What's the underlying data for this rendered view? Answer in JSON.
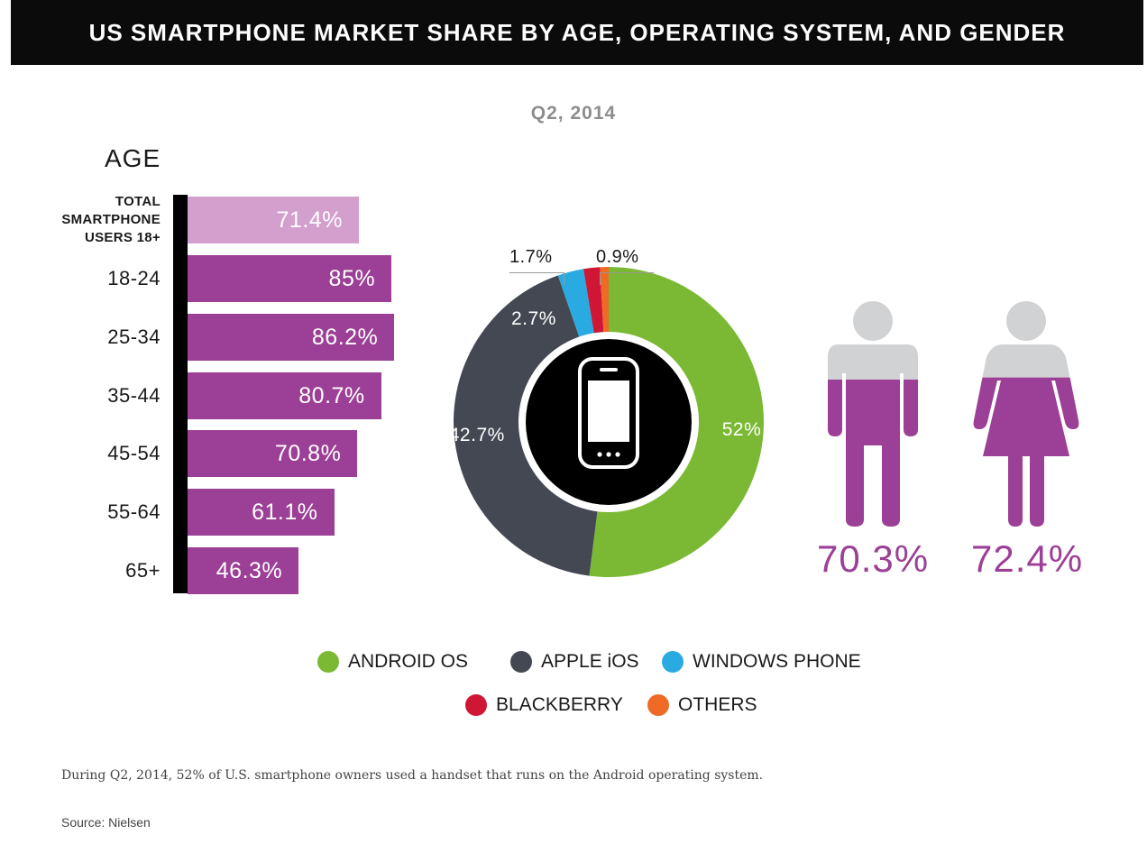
{
  "header": {
    "title": "US SMARTPHONE MARKET SHARE BY AGE, OPERATING SYSTEM, AND GENDER",
    "subtitle": "Q2, 2014"
  },
  "colors": {
    "purple": "#9c3f96",
    "light_purple": "#d39fcc",
    "android": "#7bb934",
    "ios": "#434853",
    "windows": "#29abe2",
    "blackberry": "#cf1634",
    "others": "#ef6a24",
    "person_head": "#d1d2d4"
  },
  "chart_data": [
    {
      "type": "bar",
      "orientation": "horizontal",
      "heading": "AGE",
      "categories": [
        "TOTAL SMARTPHONE USERS 18+",
        "18-24",
        "25-34",
        "35-44",
        "45-54",
        "55-64",
        "65+"
      ],
      "category_lines": [
        [
          "TOTAL",
          "SMARTPHONE",
          "USERS 18+"
        ],
        [
          "18-24"
        ],
        [
          "25-34"
        ],
        [
          "35-44"
        ],
        [
          "45-54"
        ],
        [
          "55-64"
        ],
        [
          "65+"
        ]
      ],
      "values": [
        71.4,
        85,
        86.2,
        80.7,
        70.8,
        61.1,
        46.3
      ],
      "value_labels": [
        "71.4%",
        "85%",
        "86.2%",
        "80.7%",
        "70.8%",
        "61.1%",
        "46.3%"
      ],
      "xlim": [
        0,
        100
      ]
    },
    {
      "type": "pie",
      "variant": "donut",
      "slices": [
        {
          "name": "ANDROID OS",
          "value": 52,
          "label": "52%",
          "color": "#7bb934"
        },
        {
          "name": "APPLE iOS",
          "value": 42.7,
          "label": "42.7%",
          "color": "#434853"
        },
        {
          "name": "WINDOWS PHONE",
          "value": 2.7,
          "label": "2.7%",
          "color": "#29abe2"
        },
        {
          "name": "BLACKBERRY",
          "value": 1.7,
          "label": "1.7%",
          "color": "#cf1634"
        },
        {
          "name": "OTHERS",
          "value": 0.9,
          "label": "0.9%",
          "color": "#ef6a24"
        }
      ],
      "legend": [
        "ANDROID OS",
        "APPLE iOS",
        "WINDOWS PHONE",
        "BLACKBERRY",
        "OTHERS"
      ],
      "legend_position": "bottom"
    },
    {
      "type": "bar",
      "variant": "pictogram",
      "categories": [
        "Men",
        "Women"
      ],
      "values": [
        70.3,
        72.4
      ],
      "value_labels": [
        "70.3%",
        "72.4%"
      ]
    }
  ],
  "footnote": "During Q2, 2014, 52% of U.S. smartphone owners used a handset that runs on the Android operating system.",
  "source": "Source: Nielsen"
}
